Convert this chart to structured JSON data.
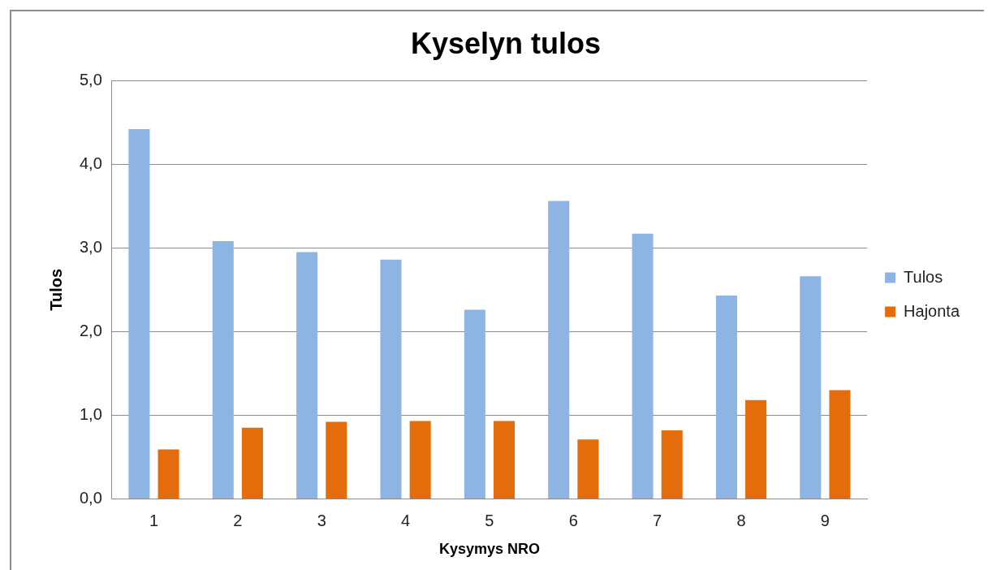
{
  "chart_data": {
    "type": "bar",
    "title": "Kyselyn tulos",
    "xlabel": "Kysymys NRO",
    "ylabel": "Tulos",
    "categories": [
      "1",
      "2",
      "3",
      "4",
      "5",
      "6",
      "7",
      "8",
      "9"
    ],
    "series": [
      {
        "name": "Tulos",
        "color": "#8eb4e3",
        "values": [
          4.42,
          3.08,
          2.95,
          2.86,
          2.26,
          3.56,
          3.17,
          2.43,
          2.66
        ]
      },
      {
        "name": "Hajonta",
        "color": "#e46c0a",
        "values": [
          0.59,
          0.85,
          0.92,
          0.93,
          0.93,
          0.71,
          0.82,
          1.18,
          1.3
        ]
      }
    ],
    "ylim": [
      0,
      5
    ],
    "yticks": [
      {
        "value": 0,
        "label": "0,0"
      },
      {
        "value": 1,
        "label": "1,0"
      },
      {
        "value": 2,
        "label": "2,0"
      },
      {
        "value": 3,
        "label": "3,0"
      },
      {
        "value": 4,
        "label": "4,0"
      },
      {
        "value": 5,
        "label": "5,0"
      }
    ],
    "grid": "y",
    "legend": "right"
  }
}
